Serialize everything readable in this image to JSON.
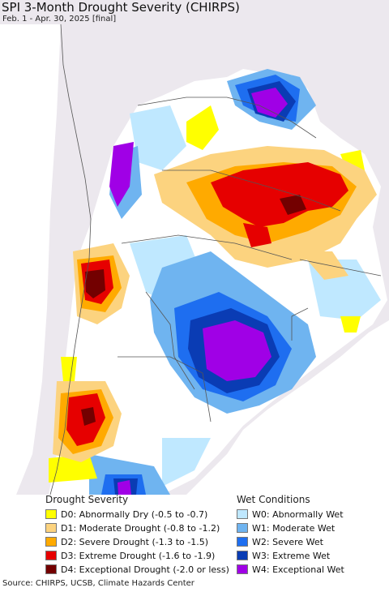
{
  "title": "SPI 3-Month Drought Severity (CHIRPS)",
  "subtitle": "Feb. 1 - Apr. 30, 2025 [final]",
  "legend": {
    "drought_heading": "Drought Severity",
    "wet_heading": "Wet Conditions",
    "drought": [
      {
        "label": "D0: Abnormally Dry (-0.5 to -0.7)",
        "color": "#ffff00"
      },
      {
        "label": "D1: Moderate Drought (-0.8 to -1.2)",
        "color": "#fcd37f"
      },
      {
        "label": "D2: Severe Drought (-1.3 to -1.5)",
        "color": "#ffaa00"
      },
      {
        "label": "D3: Extreme Drought (-1.6 to -1.9)",
        "color": "#e60000"
      },
      {
        "label": "D4: Exceptional Drought (-2.0 or less)",
        "color": "#730000"
      }
    ],
    "wet": [
      {
        "label": "W0: Abnormally Wet",
        "color": "#bfe8ff"
      },
      {
        "label": "W1: Moderate Wet",
        "color": "#6fb4f0"
      },
      {
        "label": "W2: Severe Wet",
        "color": "#1e6ef0"
      },
      {
        "label": "W3: Extreme Wet",
        "color": "#0a3cb4"
      },
      {
        "label": "W4: Exceptional Wet",
        "color": "#a000e6"
      }
    ]
  },
  "source": "Source: CHIRPS, UCSB, Climate Hazards Center"
}
